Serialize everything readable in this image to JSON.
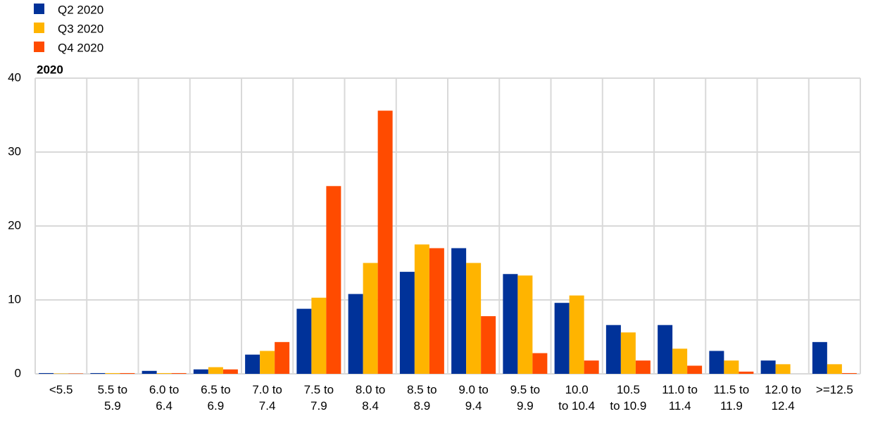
{
  "chart_data": {
    "type": "bar",
    "subtitle": "2020",
    "categories": [
      "<5.5",
      "5.5 to\n5.9",
      "6.0 to\n6.4",
      "6.5 to\n6.9",
      "7.0 to\n7.4",
      "7.5 to\n7.9",
      "8.0 to\n8.4",
      "8.5 to\n8.9",
      "9.0 to\n9.4",
      "9.5 to\n9.9",
      "10.0\nto 10.4",
      "10.5\nto 10.9",
      "11.0 to\n11.4",
      "11.5 to\n11.9",
      "12.0 to\n12.4",
      ">=12.5"
    ],
    "series": [
      {
        "name": "Q2 2020",
        "color": "#003299",
        "values": [
          0.1,
          0.1,
          0.4,
          0.6,
          2.6,
          8.8,
          10.8,
          13.8,
          17.0,
          13.5,
          9.6,
          6.6,
          6.6,
          3.1,
          1.8,
          4.3
        ]
      },
      {
        "name": "Q3 2020",
        "color": "#ffb400",
        "values": [
          0.05,
          0.1,
          0.1,
          0.9,
          3.1,
          10.3,
          15.0,
          17.5,
          15.0,
          13.3,
          10.6,
          5.6,
          3.4,
          1.8,
          1.3,
          1.3
        ]
      },
      {
        "name": "Q4 2020",
        "color": "#ff4b00",
        "values": [
          0.05,
          0.1,
          0.1,
          0.6,
          4.3,
          25.4,
          35.6,
          17.0,
          7.8,
          2.8,
          1.8,
          1.8,
          1.1,
          0.3,
          0,
          0.1
        ]
      }
    ],
    "ylim": [
      0,
      40
    ],
    "yticks": [
      0,
      10,
      20,
      30,
      40
    ],
    "grid": true,
    "legend": "top-left"
  }
}
